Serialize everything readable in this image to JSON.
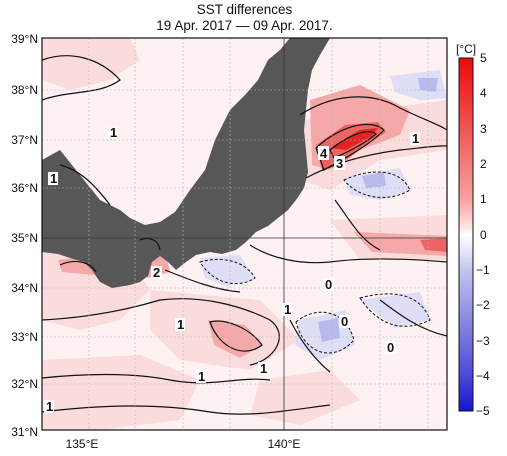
{
  "title": {
    "line1": "SST differences",
    "line2": "19 Apr. 2017 — 09 Apr. 2017."
  },
  "map": {
    "lat_labels": [
      "39°N",
      "38°N",
      "37°N",
      "36°N",
      "35°N",
      "34°N",
      "33°N",
      "32°N",
      "31°N"
    ],
    "lon_labels": [
      "135°E",
      "140°E"
    ],
    "contour_labels": [
      {
        "text": "1",
        "where": "west Honshu"
      },
      {
        "text": "1",
        "where": "left edge near 36°N"
      },
      {
        "text": "4",
        "where": "off Kashima"
      },
      {
        "text": "3",
        "where": "off Kashima"
      },
      {
        "text": "1",
        "where": "east near 37°N"
      },
      {
        "text": "2",
        "where": "Kii peninsula"
      },
      {
        "text": "0",
        "where": "south of Boso"
      },
      {
        "text": "1",
        "where": "33.3°N 137.5°E"
      },
      {
        "text": "1",
        "where": "33.3°N 140°E"
      },
      {
        "text": "0",
        "where": "33.2°N 140.8°E"
      },
      {
        "text": "0",
        "where": "32.8°N 141.5°E"
      },
      {
        "text": "1",
        "where": "32.1°N 138.2°E"
      },
      {
        "text": "1",
        "where": "32.3°N 139.8°E"
      },
      {
        "text": "1",
        "where": "31.4°N 134.4°E"
      }
    ],
    "colors": {
      "land": "#575757",
      "warm_light": "#fbdcdc",
      "warm_mid": "#f5a8a8",
      "warm_strong": "#ec6464",
      "warm_max": "#e52222",
      "cool_light": "#dedef7",
      "cool_mid": "#b9b9ec"
    }
  },
  "colorbar": {
    "unit": "[°C]",
    "ticks": [
      "5",
      "4",
      "3",
      "2",
      "1",
      "0",
      "−1",
      "−2",
      "−3",
      "−4",
      "−5"
    ],
    "colors": [
      "#ee0a0a",
      "#f02e2e",
      "#f25454",
      "#f47b7b",
      "#f7a2a2",
      "#fbcaca",
      "#ffffff",
      "#dcdcf6",
      "#b8b8ee",
      "#9292e6",
      "#6c6cde",
      "#4444d6",
      "#1a1acc"
    ]
  }
}
